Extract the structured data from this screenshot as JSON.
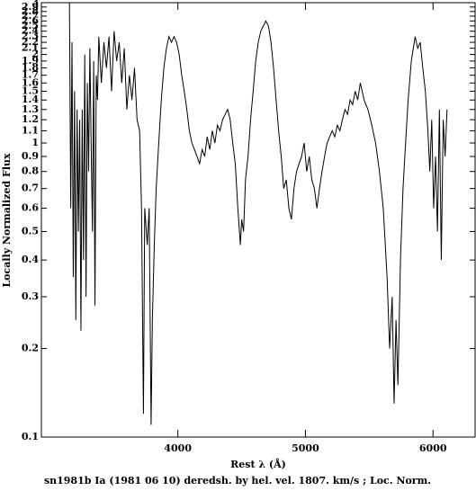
{
  "chart_data": {
    "type": "line",
    "caption": "sn1981b Ia (1981 06 10) deredsh. by hel. vel.  1807. km/s ;  Loc. Norm.",
    "x_label": "Rest λ (Å)",
    "y_label": "Locally Normalized Flux",
    "log_y": true,
    "color": "#000000",
    "xlim": [
      2930,
      6330
    ],
    "xticks": [
      4000,
      5000,
      6000
    ],
    "ylim": [
      0.1,
      3
    ],
    "yticks": [
      0.1,
      0.2,
      0.3,
      0.4,
      0.5,
      0.6,
      0.7,
      0.8,
      0.9,
      1,
      1.1,
      1.2,
      1.3,
      1.4,
      1.5,
      1.6,
      1.7,
      1.8,
      1.9,
      2,
      2.1,
      2.2,
      2.3,
      2.4,
      2.5,
      2.6,
      2.7,
      2.8,
      2.9,
      3
    ],
    "x": [
      3150,
      3160,
      3170,
      3180,
      3190,
      3200,
      3210,
      3220,
      3230,
      3240,
      3250,
      3260,
      3270,
      3280,
      3290,
      3300,
      3310,
      3320,
      3330,
      3340,
      3350,
      3360,
      3370,
      3380,
      3400,
      3420,
      3440,
      3460,
      3480,
      3500,
      3520,
      3540,
      3560,
      3580,
      3600,
      3620,
      3640,
      3660,
      3680,
      3700,
      3715,
      3730,
      3740,
      3760,
      3775,
      3790,
      3800,
      3815,
      3830,
      3850,
      3870,
      3890,
      3910,
      3930,
      3950,
      3970,
      3990,
      4010,
      4030,
      4050,
      4070,
      4090,
      4110,
      4130,
      4150,
      4170,
      4190,
      4210,
      4230,
      4250,
      4270,
      4290,
      4310,
      4330,
      4350,
      4370,
      4390,
      4410,
      4430,
      4450,
      4470,
      4490,
      4500,
      4515,
      4530,
      4550,
      4570,
      4590,
      4610,
      4630,
      4650,
      4670,
      4690,
      4710,
      4730,
      4750,
      4770,
      4790,
      4810,
      4830,
      4850,
      4870,
      4890,
      4910,
      4930,
      4950,
      4970,
      4990,
      5010,
      5030,
      5050,
      5070,
      5090,
      5110,
      5130,
      5150,
      5170,
      5190,
      5210,
      5230,
      5250,
      5270,
      5290,
      5310,
      5330,
      5350,
      5370,
      5390,
      5410,
      5430,
      5460,
      5490,
      5520,
      5550,
      5580,
      5610,
      5640,
      5660,
      5680,
      5695,
      5710,
      5725,
      5745,
      5765,
      5785,
      5805,
      5830,
      5860,
      5880,
      5900,
      5920,
      5940,
      5960,
      5975,
      5990,
      6005,
      6020,
      6035,
      6050,
      6065,
      6080,
      6095,
      6110
    ],
    "values": [
      3.0,
      0.6,
      2.2,
      0.35,
      1.5,
      0.25,
      1.3,
      0.5,
      1.2,
      0.23,
      1.3,
      0.4,
      2.0,
      0.3,
      1.6,
      0.8,
      2.1,
      1.0,
      0.5,
      1.9,
      0.28,
      1.7,
      1.4,
      2.3,
      1.6,
      2.2,
      1.8,
      2.3,
      1.5,
      2.4,
      1.9,
      2.2,
      1.6,
      2.1,
      1.3,
      1.7,
      1.4,
      1.8,
      1.2,
      1.1,
      0.6,
      0.12,
      0.6,
      0.45,
      0.6,
      0.11,
      0.25,
      0.45,
      0.7,
      1.0,
      1.4,
      1.8,
      2.1,
      2.3,
      2.2,
      2.3,
      2.2,
      2.0,
      1.7,
      1.5,
      1.3,
      1.1,
      1.0,
      0.95,
      0.9,
      0.85,
      0.95,
      0.9,
      1.05,
      0.95,
      1.1,
      1.0,
      1.15,
      1.1,
      1.2,
      1.25,
      1.3,
      1.2,
      1.0,
      0.85,
      0.6,
      0.45,
      0.55,
      0.5,
      0.75,
      0.9,
      1.2,
      1.5,
      1.9,
      2.2,
      2.4,
      2.5,
      2.6,
      2.5,
      2.2,
      1.8,
      1.4,
      1.1,
      0.9,
      0.7,
      0.75,
      0.6,
      0.55,
      0.7,
      0.8,
      0.85,
      0.9,
      1.0,
      0.8,
      0.9,
      0.75,
      0.7,
      0.6,
      0.7,
      0.8,
      0.9,
      1.0,
      1.05,
      1.1,
      1.05,
      1.15,
      1.1,
      1.2,
      1.3,
      1.25,
      1.4,
      1.35,
      1.5,
      1.4,
      1.6,
      1.4,
      1.3,
      1.15,
      1.0,
      0.8,
      0.6,
      0.35,
      0.2,
      0.3,
      0.13,
      0.25,
      0.15,
      0.4,
      0.7,
      1.0,
      1.4,
      1.9,
      2.3,
      2.1,
      2.2,
      1.8,
      1.5,
      1.1,
      0.8,
      1.2,
      0.6,
      0.9,
      0.5,
      1.3,
      0.4,
      1.2,
      0.9,
      1.3
    ]
  }
}
